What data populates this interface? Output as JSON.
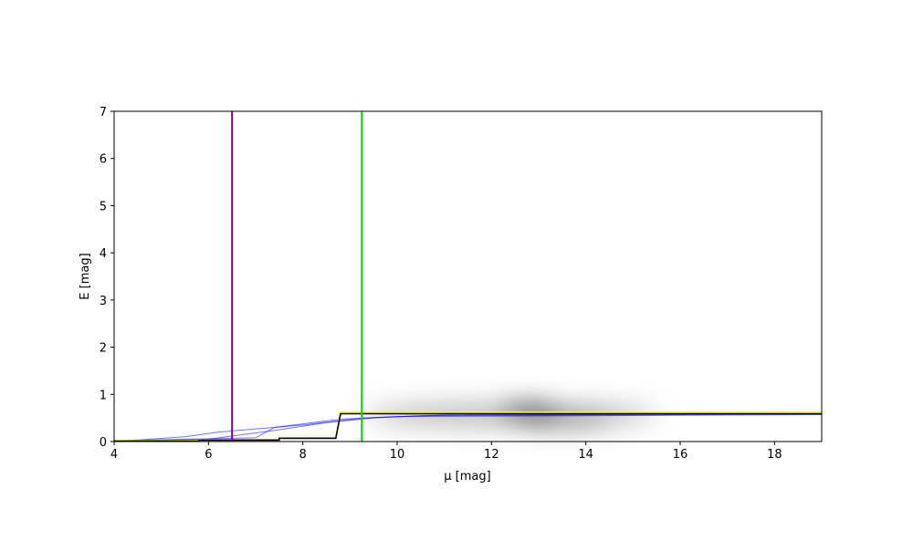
{
  "chart_data": {
    "type": "line",
    "xlabel": "μ [mag]",
    "ylabel": "E [mag]",
    "xlim": [
      4,
      19
    ],
    "ylim": [
      0,
      7
    ],
    "xticks": [
      4,
      6,
      8,
      10,
      12,
      14,
      16,
      18
    ],
    "yticks": [
      0,
      1,
      2,
      3,
      4,
      5,
      6,
      7
    ],
    "vlines": [
      {
        "x": 6.5,
        "color": "#8b008b"
      },
      {
        "x": 9.25,
        "color": "#00dd00"
      }
    ],
    "series": [
      {
        "color": "#0000ff",
        "x": [
          4,
          6,
          7.5,
          8.5,
          9.5,
          10.5,
          19
        ],
        "values": [
          0.01,
          0.05,
          0.25,
          0.4,
          0.5,
          0.55,
          0.58
        ]
      },
      {
        "color": "#0000ff",
        "x": [
          4,
          7,
          7.4,
          8.6,
          8.9,
          10,
          19
        ],
        "values": [
          0.02,
          0.08,
          0.3,
          0.45,
          0.48,
          0.53,
          0.57
        ]
      },
      {
        "color": "#0000ff",
        "x": [
          4,
          5.5,
          6.2,
          8,
          9.3,
          11,
          19
        ],
        "values": [
          0,
          0.1,
          0.2,
          0.35,
          0.5,
          0.56,
          0.59
        ]
      },
      {
        "color": "#ffff00",
        "x": [
          4,
          5.8,
          5.8,
          7.5,
          7.5,
          8.7,
          8.8,
          19
        ],
        "values": [
          0.02,
          0.02,
          0.04,
          0.04,
          0.08,
          0.08,
          0.62,
          0.62
        ]
      },
      {
        "color": "#000000",
        "x": [
          4,
          5.8,
          5.8,
          7.5,
          7.5,
          8.7,
          8.8,
          19
        ],
        "values": [
          0.01,
          0.01,
          0.03,
          0.03,
          0.07,
          0.07,
          0.59,
          0.59
        ]
      }
    ]
  }
}
